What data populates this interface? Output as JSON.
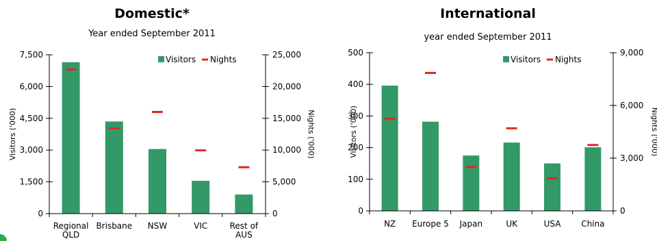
{
  "colors": {
    "visitors": "#339966",
    "nights": "#e0262b"
  },
  "chart_data": [
    {
      "type": "bar",
      "title": "Domestic*",
      "subtitle": "Year ended September 2011",
      "ylabel": "Visitors ('000)",
      "y2label": "Nights ('000)",
      "categories": [
        [
          "Regional",
          "QLD"
        ],
        [
          "Brisbane"
        ],
        [
          "NSW"
        ],
        [
          "VIC"
        ],
        [
          "Rest of",
          "AUS"
        ]
      ],
      "ylim": [
        0,
        7500
      ],
      "yticks": [
        "0",
        "1,500",
        "3,000",
        "4,500",
        "6,000",
        "7,500"
      ],
      "y2lim": [
        0,
        25000
      ],
      "y2ticks": [
        "0",
        "5,000",
        "10,000",
        "15,000",
        "20,000",
        "25,000"
      ],
      "legend": {
        "position": "top-right",
        "entries": [
          "Visitors",
          "Nights"
        ]
      },
      "series": [
        {
          "name": "Visitors",
          "axis": "left",
          "style": "bar",
          "values": [
            7150,
            4350,
            3050,
            1550,
            900
          ]
        },
        {
          "name": "Nights",
          "axis": "right",
          "style": "marker",
          "values": [
            22700,
            13400,
            16000,
            9950,
            7300
          ]
        }
      ]
    },
    {
      "type": "bar",
      "title": "International",
      "subtitle": "year ended September 2011",
      "ylabel": "Visitors ('000)",
      "y2label": "Nights ('000)",
      "categories": [
        [
          "NZ"
        ],
        [
          "Europe 5"
        ],
        [
          "Japan"
        ],
        [
          "UK"
        ],
        [
          "USA"
        ],
        [
          "China"
        ]
      ],
      "ylim": [
        0,
        500
      ],
      "yticks": [
        "0",
        "100",
        "200",
        "300",
        "400",
        "500"
      ],
      "y2lim": [
        0,
        9000
      ],
      "y2ticks": [
        "0",
        "3,000",
        "6,000",
        "9,000"
      ],
      "legend": {
        "position": "top-right",
        "entries": [
          "Visitors",
          "Nights"
        ]
      },
      "series": [
        {
          "name": "Visitors",
          "axis": "left",
          "style": "bar",
          "values": [
            396,
            282,
            175,
            216,
            150,
            201
          ]
        },
        {
          "name": "Nights",
          "axis": "right",
          "style": "marker",
          "values": [
            5250,
            7850,
            2500,
            4700,
            1850,
            3750
          ]
        }
      ]
    }
  ]
}
